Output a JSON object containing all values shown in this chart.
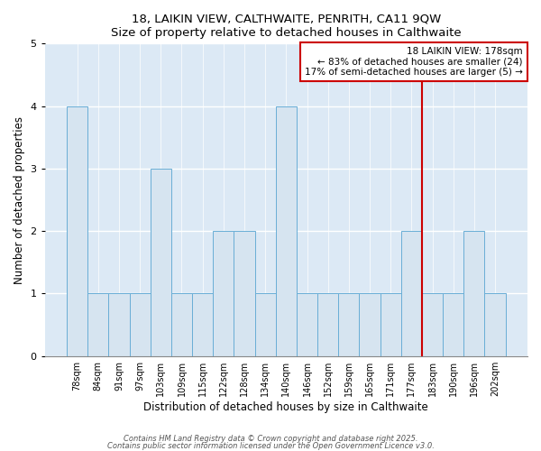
{
  "title": "18, LAIKIN VIEW, CALTHWAITE, PENRITH, CA11 9QW",
  "subtitle": "Size of property relative to detached houses in Calthwaite",
  "xlabel": "Distribution of detached houses by size in Calthwaite",
  "ylabel": "Number of detached properties",
  "categories": [
    "78sqm",
    "84sqm",
    "91sqm",
    "97sqm",
    "103sqm",
    "109sqm",
    "115sqm",
    "122sqm",
    "128sqm",
    "134sqm",
    "140sqm",
    "146sqm",
    "152sqm",
    "159sqm",
    "165sqm",
    "171sqm",
    "177sqm",
    "183sqm",
    "190sqm",
    "196sqm",
    "202sqm"
  ],
  "values": [
    4,
    1,
    1,
    1,
    3,
    1,
    1,
    2,
    2,
    1,
    4,
    1,
    1,
    1,
    1,
    1,
    2,
    1,
    1,
    2,
    1
  ],
  "bar_color": "#d6e4f0",
  "bar_edge_color": "#6aaed6",
  "vline_x_index": 16,
  "vline_color": "#cc0000",
  "annotation_text": "18 LAIKIN VIEW: 178sqm\n← 83% of detached houses are smaller (24)\n17% of semi-detached houses are larger (5) →",
  "annotation_box_color": "#cc0000",
  "ylim": [
    0,
    5
  ],
  "yticks": [
    0,
    1,
    2,
    3,
    4,
    5
  ],
  "plot_bg_color": "#dce9f5",
  "fig_bg_color": "#ffffff",
  "footer1": "Contains HM Land Registry data © Crown copyright and database right 2025.",
  "footer2": "Contains public sector information licensed under the Open Government Licence v3.0."
}
